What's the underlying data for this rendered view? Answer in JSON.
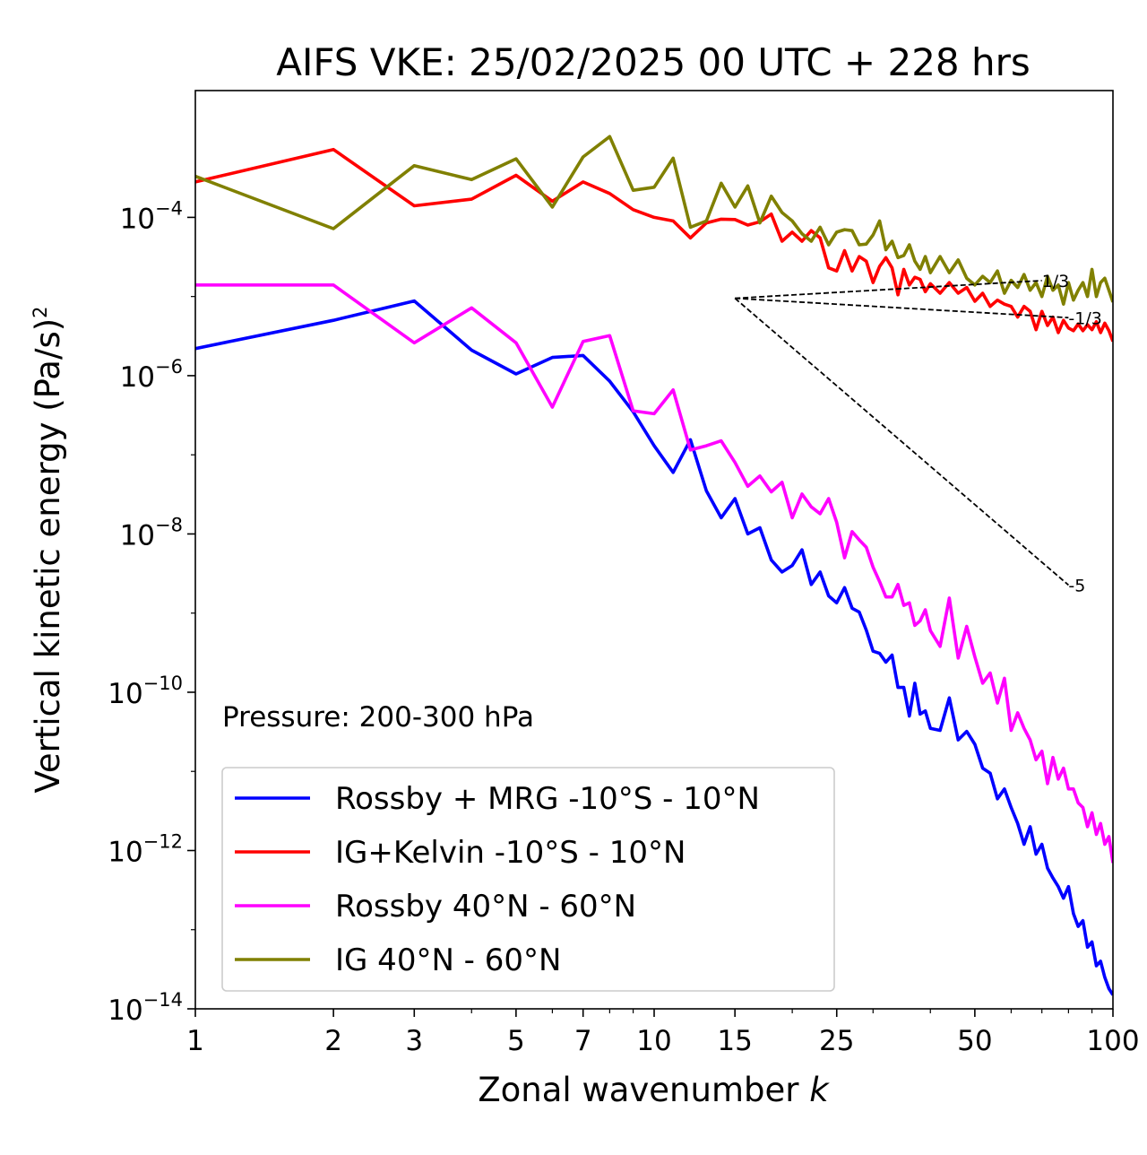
{
  "chart_data": {
    "type": "line",
    "title": "AIFS VKE: 25/02/2025 00 UTC + 228 hrs",
    "xlabel": "Zonal wavenumber",
    "xlabel_var": "k",
    "ylabel": "Vertical kinetic energy",
    "ylabel_units": "(Pa/s)",
    "ylabel_power": "2",
    "x_scale": "log",
    "y_scale": "log",
    "xlim": [
      1,
      100
    ],
    "ylim": [
      1e-14,
      0.004
    ],
    "x_ticks": [
      1,
      2,
      3,
      5,
      7,
      10,
      15,
      25,
      50,
      100
    ],
    "x_tick_labels": [
      "1",
      "2",
      "3",
      "5",
      "7",
      "10",
      "15",
      "25",
      "50",
      "100"
    ],
    "y_ticks": [
      {
        "value": 0.0001,
        "base": "10",
        "exp": "−4"
      },
      {
        "value": 1e-06,
        "base": "10",
        "exp": "−6"
      },
      {
        "value": 1e-08,
        "base": "10",
        "exp": "−8"
      },
      {
        "value": 1e-10,
        "base": "10",
        "exp": "−10"
      },
      {
        "value": 1e-12,
        "base": "10",
        "exp": "−12"
      },
      {
        "value": 1e-14,
        "base": "10",
        "exp": "−14"
      }
    ],
    "annotation": "Pressure: 200-300 hPa",
    "legend_position": "lower-left",
    "grid": false,
    "series": [
      {
        "name": "Rossby + MRG -10°S - 10°N",
        "color": "#0000ff",
        "points": [
          [
            1,
            2.2e-06
          ],
          [
            2,
            5e-06
          ],
          [
            3,
            8.8e-06
          ],
          [
            4,
            2.1e-06
          ],
          [
            5,
            1.05e-06
          ],
          [
            6,
            1.7e-06
          ],
          [
            7,
            1.8e-06
          ],
          [
            8,
            8.5e-07
          ],
          [
            9,
            3.5e-07
          ],
          [
            10,
            1.3e-07
          ],
          [
            11,
            6e-08
          ],
          [
            12,
            1.55e-07
          ],
          [
            13,
            3.5e-08
          ],
          [
            14,
            1.6e-08
          ],
          [
            15,
            2.8e-08
          ],
          [
            16,
            1e-08
          ],
          [
            17,
            1.2e-08
          ],
          [
            18,
            4.7e-09
          ],
          [
            19,
            3.3e-09
          ],
          [
            20,
            4e-09
          ],
          [
            21,
            6.3e-09
          ],
          [
            22,
            2.3e-09
          ],
          [
            23,
            3.3e-09
          ],
          [
            24,
            1.65e-09
          ],
          [
            25,
            1.35e-09
          ],
          [
            26,
            2.1e-09
          ],
          [
            27,
            1.15e-09
          ],
          [
            28,
            1.03e-09
          ],
          [
            29,
            6.1e-10
          ],
          [
            30,
            3.3e-10
          ],
          [
            31,
            3.1e-10
          ],
          [
            32,
            2.4e-10
          ],
          [
            33,
            2.95e-10
          ],
          [
            34,
            1.15e-10
          ],
          [
            35,
            1.15e-10
          ],
          [
            36,
            5e-11
          ],
          [
            37,
            1.3e-10
          ],
          [
            38,
            5.3e-11
          ],
          [
            39,
            5.8e-11
          ],
          [
            40,
            3.5e-11
          ],
          [
            42,
            3.3e-11
          ],
          [
            44,
            8.5e-11
          ],
          [
            46,
            2.5e-11
          ],
          [
            48,
            3.2e-11
          ],
          [
            50,
            2.2e-11
          ],
          [
            52,
            1.1e-11
          ],
          [
            54,
            9.5e-12
          ],
          [
            56,
            4.5e-12
          ],
          [
            58,
            6e-12
          ],
          [
            60,
            3.5e-12
          ],
          [
            62,
            2.2e-12
          ],
          [
            64,
            1.2e-12
          ],
          [
            66,
            2e-12
          ],
          [
            68,
            9e-13
          ],
          [
            70,
            1.2e-12
          ],
          [
            72,
            6e-13
          ],
          [
            74,
            4.5e-13
          ],
          [
            76,
            3.5e-13
          ],
          [
            78,
            2.5e-13
          ],
          [
            80,
            3.5e-13
          ],
          [
            82,
            1.6e-13
          ],
          [
            84,
            1.1e-13
          ],
          [
            86,
            1.3e-13
          ],
          [
            88,
            6e-14
          ],
          [
            90,
            7e-14
          ],
          [
            92,
            3.5e-14
          ],
          [
            94,
            4e-14
          ],
          [
            96,
            2.5e-14
          ],
          [
            98,
            1.8e-14
          ],
          [
            100,
            1.5e-14
          ]
        ]
      },
      {
        "name": "IG+Kelvin -10°S - 10°N",
        "color": "#ff0000",
        "points": [
          [
            1,
            0.00028
          ],
          [
            2,
            0.00072
          ],
          [
            3,
            0.00014
          ],
          [
            4,
            0.00017
          ],
          [
            5,
            0.00034
          ],
          [
            6,
            0.00016
          ],
          [
            7,
            0.00028
          ],
          [
            8,
            0.0002
          ],
          [
            9,
            0.000125
          ],
          [
            10,
            0.0001
          ],
          [
            11,
            9e-05
          ],
          [
            12,
            5.5e-05
          ],
          [
            13,
            8.5e-05
          ],
          [
            14,
            9.5e-05
          ],
          [
            15,
            9.4e-05
          ],
          [
            16,
            8e-05
          ],
          [
            17,
            8.8e-05
          ],
          [
            18,
            0.00011
          ],
          [
            19,
            5e-05
          ],
          [
            20,
            6.5e-05
          ],
          [
            21,
            5e-05
          ],
          [
            22,
            6.8e-05
          ],
          [
            23,
            5.5e-05
          ],
          [
            24,
            2.3e-05
          ],
          [
            25,
            2.1e-05
          ],
          [
            26,
            3.8e-05
          ],
          [
            27,
            2.1e-05
          ],
          [
            28,
            3.2e-05
          ],
          [
            29,
            2.8e-05
          ],
          [
            30,
            1.5e-05
          ],
          [
            31,
            2.4e-05
          ],
          [
            32,
            3.1e-05
          ],
          [
            33,
            2.3e-05
          ],
          [
            34,
            1.05e-05
          ],
          [
            35,
            2.2e-05
          ],
          [
            36,
            1.4e-05
          ],
          [
            37,
            1.75e-05
          ],
          [
            38,
            1.65e-05
          ],
          [
            39,
            1.15e-05
          ],
          [
            40,
            1.45e-05
          ],
          [
            42,
            1.1e-05
          ],
          [
            44,
            1.5e-05
          ],
          [
            46,
            1.1e-05
          ],
          [
            48,
            1.3e-05
          ],
          [
            50,
            8.7e-06
          ],
          [
            52,
            1.1e-05
          ],
          [
            54,
            7.5e-06
          ],
          [
            56,
            9e-06
          ],
          [
            58,
            8e-06
          ],
          [
            60,
            7.5e-06
          ],
          [
            62,
            5.5e-06
          ],
          [
            64,
            7.5e-06
          ],
          [
            66,
            6.5e-06
          ],
          [
            68,
            3.8e-06
          ],
          [
            70,
            6.5e-06
          ],
          [
            72,
            4.3e-06
          ],
          [
            74,
            5.5e-06
          ],
          [
            76,
            3.5e-06
          ],
          [
            78,
            5e-06
          ],
          [
            80,
            4e-06
          ],
          [
            82,
            3.7e-06
          ],
          [
            84,
            4.5e-06
          ],
          [
            86,
            3.7e-06
          ],
          [
            88,
            4.4e-06
          ],
          [
            90,
            3.8e-06
          ],
          [
            92,
            4.8e-06
          ],
          [
            94,
            3.5e-06
          ],
          [
            96,
            4.6e-06
          ],
          [
            98,
            3.7e-06
          ],
          [
            100,
            2.7e-06
          ]
        ]
      },
      {
        "name": "Rossby 40°N - 60°N",
        "color": "#ff00ff",
        "points": [
          [
            1,
            1.4e-05
          ],
          [
            2,
            1.4e-05
          ],
          [
            3,
            2.6e-06
          ],
          [
            4,
            7.2e-06
          ],
          [
            5,
            2.6e-06
          ],
          [
            6,
            4e-07
          ],
          [
            7,
            2.7e-06
          ],
          [
            8,
            3.2e-06
          ],
          [
            9,
            3.6e-07
          ],
          [
            10,
            3.3e-07
          ],
          [
            11,
            6.6e-07
          ],
          [
            12,
            1.15e-07
          ],
          [
            13,
            1.3e-07
          ],
          [
            14,
            1.5e-07
          ],
          [
            15,
            8e-08
          ],
          [
            16,
            4e-08
          ],
          [
            17,
            5.4e-08
          ],
          [
            18,
            3.4e-08
          ],
          [
            19,
            4.5e-08
          ],
          [
            20,
            1.6e-08
          ],
          [
            21,
            3.2e-08
          ],
          [
            22,
            2.2e-08
          ],
          [
            23,
            1.8e-08
          ],
          [
            24,
            2.8e-08
          ],
          [
            25,
            1.4e-08
          ],
          [
            26,
            5e-09
          ],
          [
            27,
            1.07e-08
          ],
          [
            28,
            8.4e-09
          ],
          [
            29,
            6.8e-09
          ],
          [
            30,
            3.8e-09
          ],
          [
            31,
            2.5e-09
          ],
          [
            32,
            1.6e-09
          ],
          [
            33,
            1.6e-09
          ],
          [
            34,
            2.3e-09
          ],
          [
            35,
            1.25e-09
          ],
          [
            36,
            1.35e-09
          ],
          [
            37,
            7e-10
          ],
          [
            38,
            8e-10
          ],
          [
            39,
            1.1e-09
          ],
          [
            40,
            6e-10
          ],
          [
            42,
            3.8e-10
          ],
          [
            44,
            1.55e-09
          ],
          [
            46,
            2.7e-10
          ],
          [
            48,
            6.8e-10
          ],
          [
            50,
            2.8e-10
          ],
          [
            52,
            1.3e-10
          ],
          [
            54,
            1.75e-10
          ],
          [
            56,
            7.3e-11
          ],
          [
            58,
            1.5e-10
          ],
          [
            60,
            3.3e-11
          ],
          [
            62,
            5.5e-11
          ],
          [
            64,
            3.5e-11
          ],
          [
            66,
            2.5e-11
          ],
          [
            68,
            1.4e-11
          ],
          [
            70,
            1.8e-11
          ],
          [
            72,
            7e-12
          ],
          [
            74,
            1.5e-11
          ],
          [
            76,
            8e-12
          ],
          [
            78,
            1.1e-11
          ],
          [
            80,
            6e-12
          ],
          [
            82,
            6e-12
          ],
          [
            84,
            4e-12
          ],
          [
            86,
            3.5e-12
          ],
          [
            88,
            2e-12
          ],
          [
            90,
            3e-12
          ],
          [
            92,
            1.6e-12
          ],
          [
            94,
            2.2e-12
          ],
          [
            96,
            1.2e-12
          ],
          [
            98,
            1.5e-12
          ],
          [
            100,
            7e-13
          ]
        ]
      },
      {
        "name": "IG 40°N - 60°N",
        "color": "#808000",
        "points": [
          [
            1,
            0.00033
          ],
          [
            2,
            7.2e-05
          ],
          [
            3,
            0.00045
          ],
          [
            4,
            0.0003
          ],
          [
            5,
            0.00055
          ],
          [
            6,
            0.000135
          ],
          [
            7,
            0.00058
          ],
          [
            8,
            0.00105
          ],
          [
            9,
            0.00022
          ],
          [
            10,
            0.00024
          ],
          [
            11,
            0.00056
          ],
          [
            12,
            7.5e-05
          ],
          [
            13,
            9e-05
          ],
          [
            14,
            0.00027
          ],
          [
            15,
            0.000135
          ],
          [
            16,
            0.00025
          ],
          [
            17,
            8.5e-05
          ],
          [
            18,
            0.000185
          ],
          [
            19,
            0.000115
          ],
          [
            20,
            9e-05
          ],
          [
            21,
            6.2e-05
          ],
          [
            22,
            5e-05
          ],
          [
            23,
            7.5e-05
          ],
          [
            24,
            4.5e-05
          ],
          [
            25,
            6.5e-05
          ],
          [
            26,
            7e-05
          ],
          [
            27,
            6.8e-05
          ],
          [
            28,
            4.5e-05
          ],
          [
            29,
            4.6e-05
          ],
          [
            30,
            6e-05
          ],
          [
            31,
            9e-05
          ],
          [
            32,
            3.9e-05
          ],
          [
            33,
            5e-05
          ],
          [
            34,
            3.1e-05
          ],
          [
            35,
            3.3e-05
          ],
          [
            36,
            4.5e-05
          ],
          [
            37,
            2.8e-05
          ],
          [
            38,
            2.2e-05
          ],
          [
            39,
            3.2e-05
          ],
          [
            40,
            2e-05
          ],
          [
            42,
            3.2e-05
          ],
          [
            44,
            2e-05
          ],
          [
            46,
            2.9e-05
          ],
          [
            48,
            1.7e-05
          ],
          [
            50,
            1.4e-05
          ],
          [
            52,
            1.8e-05
          ],
          [
            54,
            1.5e-05
          ],
          [
            56,
            2.1e-05
          ],
          [
            58,
            1.1e-05
          ],
          [
            60,
            1.6e-05
          ],
          [
            62,
            1.3e-05
          ],
          [
            64,
            1.9e-05
          ],
          [
            66,
            1.2e-05
          ],
          [
            68,
            1.5e-05
          ],
          [
            70,
            1e-05
          ],
          [
            72,
            1.8e-05
          ],
          [
            74,
            1.2e-05
          ],
          [
            76,
            1.4e-05
          ],
          [
            78,
            8e-06
          ],
          [
            80,
            1.5e-05
          ],
          [
            82,
            9e-06
          ],
          [
            84,
            1.2e-05
          ],
          [
            86,
            1.5e-05
          ],
          [
            88,
            1e-05
          ],
          [
            90,
            2.2e-05
          ],
          [
            92,
            1e-05
          ],
          [
            94,
            1.5e-05
          ],
          [
            96,
            1.7e-05
          ],
          [
            98,
            1.2e-05
          ],
          [
            100,
            8.5e-06
          ]
        ]
      }
    ],
    "reference_slopes": [
      {
        "label": "1/3",
        "color": "#000000",
        "points": [
          [
            15,
            9.5e-06
          ],
          [
            70,
            1.59e-05
          ]
        ]
      },
      {
        "label": "-1/3",
        "color": "#000000",
        "points": [
          [
            15,
            9.5e-06
          ],
          [
            80,
            5.4e-06
          ]
        ]
      },
      {
        "label": "-5",
        "color": "#000000",
        "points": [
          [
            15,
            9.5e-06
          ],
          [
            80,
            2.26e-09
          ]
        ]
      }
    ]
  }
}
